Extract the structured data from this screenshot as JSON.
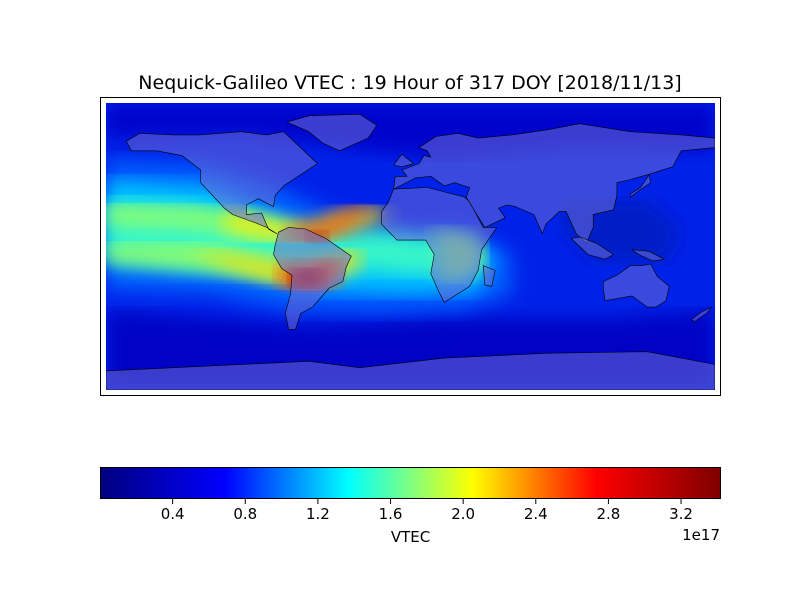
{
  "title": "Nequick-Galileo VTEC : 19 Hour of 317 DOY [2018/11/13]",
  "map": {
    "variable": "VTEC",
    "projection": "cylindrical",
    "lon_range": [
      -180,
      180
    ],
    "lat_range": [
      -90,
      90
    ],
    "colormap": "jet",
    "colormap_stops": [
      "#00007f",
      "#0000ff",
      "#00ffff",
      "#ffff00",
      "#ff0000",
      "#7f0000"
    ],
    "land_overlay_color": "#6b6bd6",
    "coastline_color": "#000000"
  },
  "colorbar": {
    "label": "VTEC",
    "multiplier": "1e17",
    "min": 0.0,
    "max": 3.42,
    "ticks": [
      "0.4",
      "0.8",
      "1.2",
      "1.6",
      "2.0",
      "2.4",
      "2.8",
      "3.2"
    ],
    "tick_values": [
      0.4,
      0.8,
      1.2,
      1.6,
      2.0,
      2.4,
      2.8,
      3.2
    ]
  }
}
